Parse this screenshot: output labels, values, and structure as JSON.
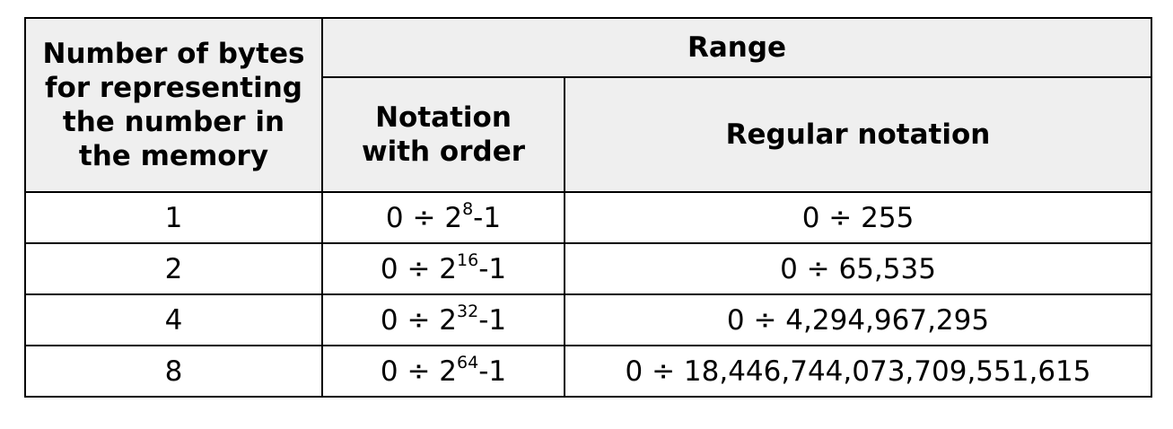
{
  "table": {
    "header": {
      "bytes_col": "Number of bytes for representing the number in the memory",
      "range": "Range",
      "notation_order": "Notation with order",
      "regular_notation": "Regular notation"
    },
    "rows": [
      {
        "bytes": "1",
        "order_base": "0 ÷ 2",
        "order_exp": "8",
        "order_suffix": "-1",
        "regular": "0 ÷ 255"
      },
      {
        "bytes": "2",
        "order_base": "0 ÷ 2",
        "order_exp": "16",
        "order_suffix": "-1",
        "regular": "0 ÷ 65,535"
      },
      {
        "bytes": "4",
        "order_base": "0 ÷ 2",
        "order_exp": "32",
        "order_suffix": "-1",
        "regular": "0 ÷ 4,294,967,295"
      },
      {
        "bytes": "8",
        "order_base": "0 ÷ 2",
        "order_exp": "64",
        "order_suffix": "-1",
        "regular": "0 ÷ 18,446,744,073,709,551,615"
      }
    ]
  }
}
